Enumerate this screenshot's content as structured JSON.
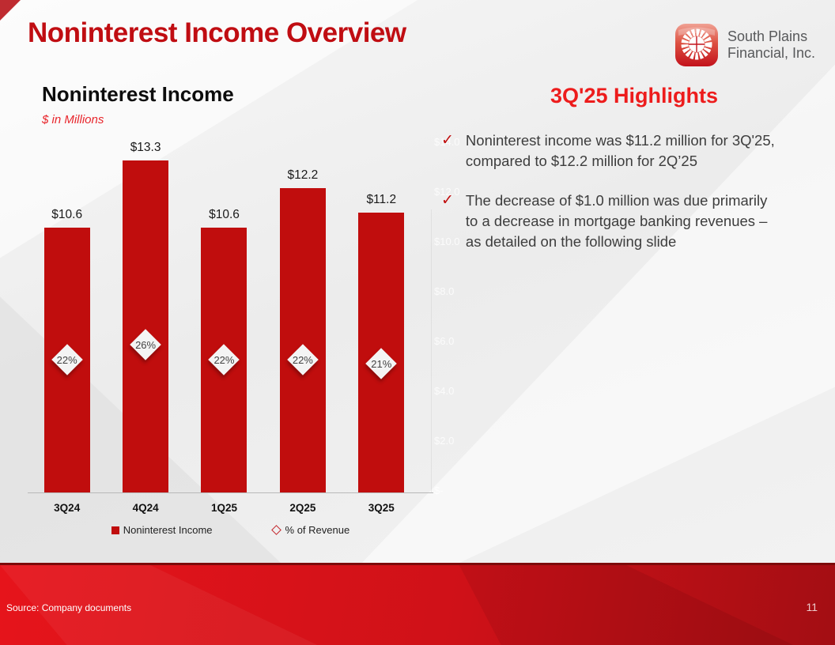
{
  "slide": {
    "title": "Noninterest Income Overview",
    "source": "Source: Company documents",
    "page_number": "11"
  },
  "logo": {
    "name_line1": "South Plains",
    "name_line2": "Financial, Inc."
  },
  "chart_data": {
    "type": "bar",
    "title": "Noninterest Income",
    "subtitle": "$ in Millions",
    "categories": [
      "3Q24",
      "4Q24",
      "1Q25",
      "2Q25",
      "3Q25"
    ],
    "series": [
      {
        "name": "Noninterest Income",
        "values": [
          10.6,
          13.3,
          10.6,
          12.2,
          11.2
        ],
        "labels": [
          "$10.6",
          "$13.3",
          "$10.6",
          "$12.2",
          "$11.2"
        ]
      },
      {
        "name": "% of Revenue",
        "values": [
          22,
          26,
          22,
          22,
          21
        ],
        "labels": [
          "22%",
          "26%",
          "22%",
          "22%",
          "21%"
        ]
      }
    ],
    "ylim": [
      0,
      14.6
    ],
    "ghost_axis_labels": [
      "$14.0",
      "$12.0",
      "$10.0",
      "$8.0",
      "$6.0",
      "$4.0",
      "$2.0",
      "$-"
    ],
    "legend": [
      "Noninterest Income",
      "% of Revenue"
    ],
    "legend_position": "bottom",
    "grid": false
  },
  "highlights": {
    "title": "3Q'25 Highlights",
    "bullets": [
      "Noninterest income was $11.2 million for 3Q'25,\ncompared to $12.2 million for 2Q’25",
      "The decrease of $1.0 million was due primarily\nto a decrease in mortgage banking revenues –\nas detailed on the following slide"
    ],
    "check_glyph": "✓"
  },
  "colors": {
    "bar_red": "#c00d0d",
    "title_red": "#c00d12",
    "accent_red": "#ed1c1c",
    "footer_red": "#cf1118"
  }
}
